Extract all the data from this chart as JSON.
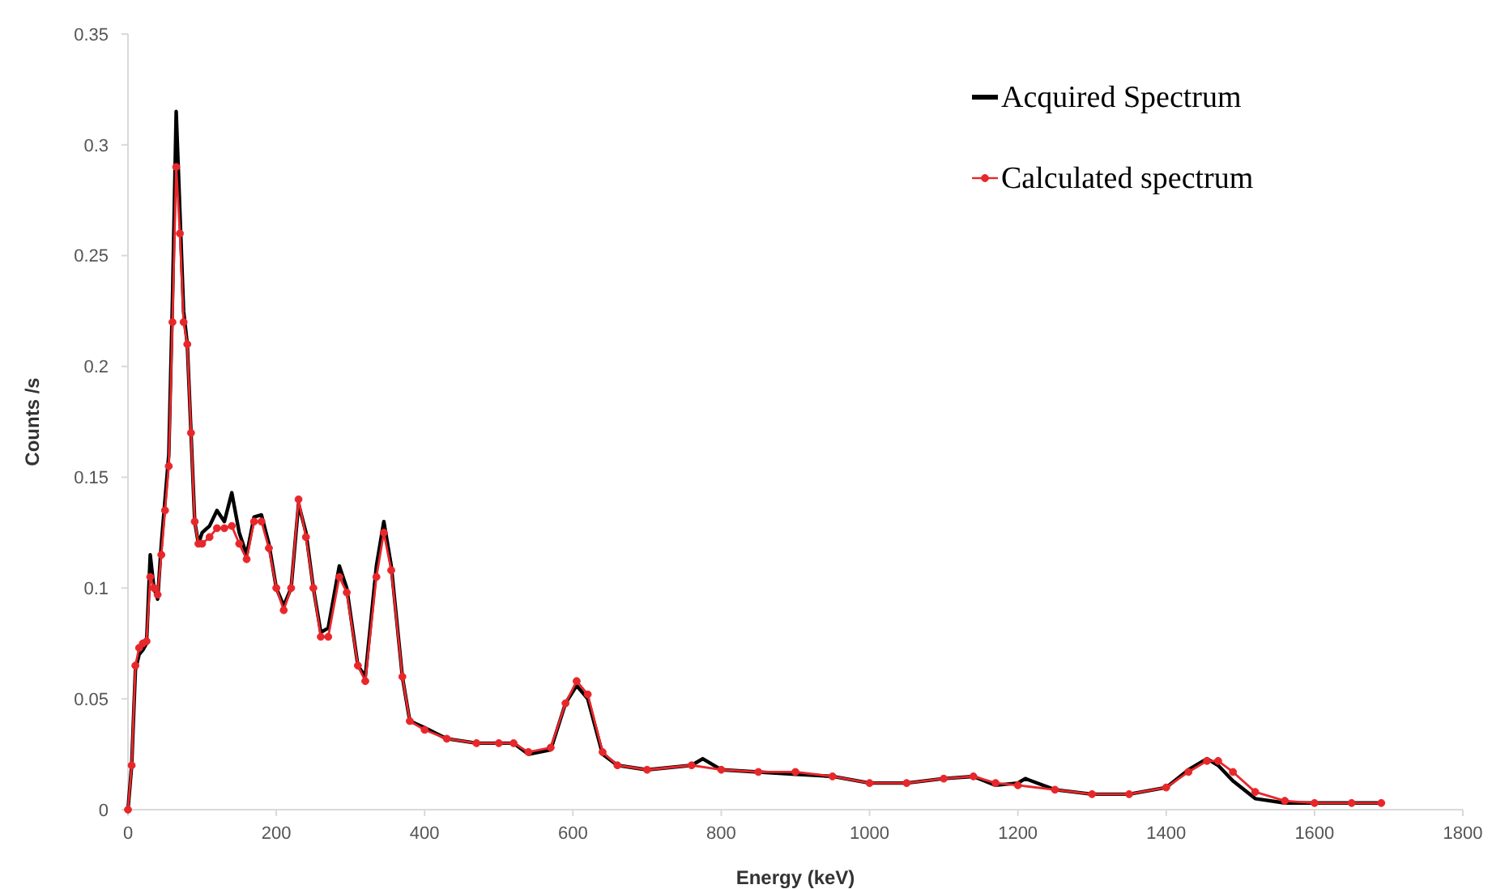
{
  "chart_data": {
    "type": "line",
    "xlabel": "Energy (keV)",
    "ylabel": "Counts /s",
    "xlim": [
      0,
      1800
    ],
    "ylim": [
      0,
      0.35
    ],
    "xticks": [
      0,
      200,
      400,
      600,
      800,
      1000,
      1200,
      1400,
      1600,
      1800
    ],
    "yticks": [
      0,
      0.05,
      0.1,
      0.15,
      0.2,
      0.25,
      0.3,
      0.35
    ],
    "grid": false,
    "legend": "top right",
    "series": [
      {
        "name": "Acquired Spectrum",
        "color": "#000000",
        "marker": "none",
        "x": [
          0,
          5,
          10,
          15,
          20,
          25,
          30,
          35,
          40,
          45,
          50,
          55,
          60,
          65,
          70,
          75,
          80,
          85,
          90,
          95,
          100,
          110,
          120,
          130,
          140,
          150,
          160,
          170,
          180,
          190,
          200,
          210,
          220,
          230,
          240,
          250,
          260,
          270,
          285,
          295,
          310,
          320,
          335,
          345,
          355,
          370,
          380,
          400,
          430,
          470,
          500,
          520,
          540,
          570,
          590,
          605,
          620,
          640,
          660,
          700,
          760,
          775,
          800,
          850,
          900,
          950,
          1000,
          1050,
          1100,
          1140,
          1170,
          1200,
          1210,
          1250,
          1300,
          1350,
          1400,
          1430,
          1455,
          1470,
          1490,
          1520,
          1560,
          1600,
          1650,
          1690
        ],
        "values": [
          0,
          0.02,
          0.063,
          0.07,
          0.072,
          0.075,
          0.115,
          0.1,
          0.095,
          0.12,
          0.14,
          0.16,
          0.23,
          0.315,
          0.27,
          0.225,
          0.21,
          0.17,
          0.13,
          0.12,
          0.125,
          0.128,
          0.135,
          0.13,
          0.143,
          0.125,
          0.115,
          0.132,
          0.133,
          0.12,
          0.1,
          0.092,
          0.1,
          0.138,
          0.125,
          0.1,
          0.08,
          0.082,
          0.11,
          0.1,
          0.065,
          0.06,
          0.11,
          0.13,
          0.11,
          0.06,
          0.04,
          0.037,
          0.032,
          0.03,
          0.03,
          0.03,
          0.025,
          0.027,
          0.048,
          0.056,
          0.05,
          0.025,
          0.02,
          0.018,
          0.02,
          0.023,
          0.018,
          0.017,
          0.016,
          0.015,
          0.012,
          0.012,
          0.014,
          0.015,
          0.011,
          0.012,
          0.014,
          0.009,
          0.007,
          0.007,
          0.01,
          0.018,
          0.023,
          0.02,
          0.013,
          0.005,
          0.003,
          0.003,
          0.003,
          0.003
        ]
      },
      {
        "name": "Calculated spectrum",
        "color": "#e8272b",
        "marker": "circle",
        "x": [
          0,
          5,
          10,
          15,
          20,
          25,
          30,
          35,
          40,
          45,
          50,
          55,
          60,
          65,
          70,
          75,
          80,
          85,
          90,
          95,
          100,
          110,
          120,
          130,
          140,
          150,
          160,
          170,
          180,
          190,
          200,
          210,
          220,
          230,
          240,
          250,
          260,
          270,
          285,
          295,
          310,
          320,
          335,
          345,
          355,
          370,
          380,
          400,
          430,
          470,
          500,
          520,
          540,
          570,
          590,
          605,
          620,
          640,
          660,
          700,
          760,
          800,
          850,
          900,
          950,
          1000,
          1050,
          1100,
          1140,
          1170,
          1200,
          1250,
          1300,
          1350,
          1400,
          1430,
          1455,
          1470,
          1490,
          1520,
          1560,
          1600,
          1650,
          1690
        ],
        "values": [
          0,
          0.02,
          0.065,
          0.073,
          0.075,
          0.076,
          0.105,
          0.1,
          0.097,
          0.115,
          0.135,
          0.155,
          0.22,
          0.29,
          0.26,
          0.22,
          0.21,
          0.17,
          0.13,
          0.12,
          0.12,
          0.123,
          0.127,
          0.127,
          0.128,
          0.12,
          0.113,
          0.13,
          0.13,
          0.118,
          0.1,
          0.09,
          0.1,
          0.14,
          0.123,
          0.1,
          0.078,
          0.078,
          0.105,
          0.098,
          0.065,
          0.058,
          0.105,
          0.125,
          0.108,
          0.06,
          0.04,
          0.036,
          0.032,
          0.03,
          0.03,
          0.03,
          0.026,
          0.028,
          0.048,
          0.058,
          0.052,
          0.026,
          0.02,
          0.018,
          0.02,
          0.018,
          0.017,
          0.017,
          0.015,
          0.012,
          0.012,
          0.014,
          0.015,
          0.012,
          0.011,
          0.009,
          0.007,
          0.007,
          0.01,
          0.017,
          0.022,
          0.022,
          0.017,
          0.008,
          0.004,
          0.003,
          0.003,
          0.003
        ]
      }
    ]
  }
}
